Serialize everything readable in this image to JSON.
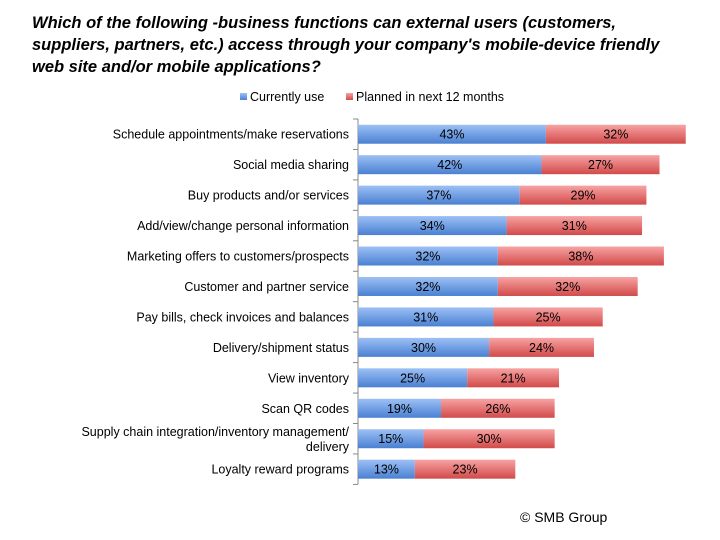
{
  "title": "Which of the following -business functions can external users (customers, suppliers, partners, etc.) access through your company's mobile-device friendly web site and/or mobile applications?",
  "credit": "© SMB Group",
  "colors": {
    "current": "#4F81BD",
    "planned": "#C0504D"
  },
  "chart_data": {
    "type": "bar",
    "orientation": "horizontal",
    "stacked": true,
    "title": "Which of the following -business functions can external users (customers, suppliers, partners, etc.) access through your company's mobile-device friendly web site and/or mobile applications?",
    "legend_position": "top",
    "xlabel": "",
    "ylabel": "",
    "xlim": [
      0,
      80
    ],
    "grid": false,
    "categories": [
      "Schedule appointments/make reservations",
      "Social media sharing",
      "Buy products and/or services",
      "Add/view/change personal information",
      "Marketing offers to customers/prospects",
      "Customer and partner service",
      "Pay bills, check invoices and balances",
      "Delivery/shipment status",
      "View inventory",
      "Scan QR codes",
      "Supply chain integration/inventory management/ delivery",
      "Loyalty reward programs"
    ],
    "series": [
      {
        "name": "Currently use",
        "values": [
          43,
          42,
          37,
          34,
          32,
          32,
          31,
          30,
          25,
          19,
          15,
          13
        ],
        "labels": [
          "43%",
          "42%",
          "37%",
          "34%",
          "32%",
          "32%",
          "31%",
          "30%",
          "25%",
          "19%",
          "15%",
          "13%"
        ]
      },
      {
        "name": "Planned in next 12 months",
        "values": [
          32,
          27,
          29,
          31,
          38,
          32,
          25,
          24,
          21,
          26,
          30,
          23
        ],
        "labels": [
          "32%",
          "27%",
          "29%",
          "31%",
          "38%",
          "32%",
          "25%",
          "24%",
          "21%",
          "26%",
          "30%",
          "23%"
        ]
      }
    ]
  }
}
